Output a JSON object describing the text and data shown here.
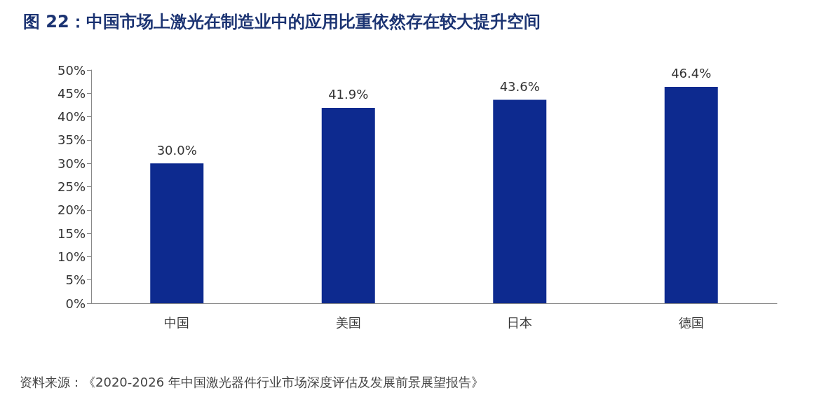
{
  "chart_data": {
    "type": "bar",
    "title": "图 22：中国市场上激光在制造业中的应用比重依然存在较大提升空间",
    "categories": [
      "中国",
      "美国",
      "日本",
      "德国"
    ],
    "values": [
      30.0,
      41.9,
      43.6,
      46.4
    ],
    "value_labels": [
      "30.0%",
      "41.9%",
      "43.6%",
      "46.4%"
    ],
    "color": "#0d2a8f",
    "ylim": [
      0,
      50
    ],
    "yticks": [
      {
        "value": 0,
        "label": "0%"
      },
      {
        "value": 5,
        "label": "5%"
      },
      {
        "value": 10,
        "label": "10%"
      },
      {
        "value": 15,
        "label": "15%"
      },
      {
        "value": 20,
        "label": "20%"
      },
      {
        "value": 25,
        "label": "25%"
      },
      {
        "value": 30,
        "label": "30%"
      },
      {
        "value": 35,
        "label": "35%"
      },
      {
        "value": 40,
        "label": "40%"
      },
      {
        "value": 45,
        "label": "45%"
      },
      {
        "value": 50,
        "label": "50%"
      }
    ],
    "grid": false,
    "annotations": [
      "资料来源：《2020-2026 年中国激光器件行业市场深度评估及发展前景展望报告》"
    ]
  }
}
